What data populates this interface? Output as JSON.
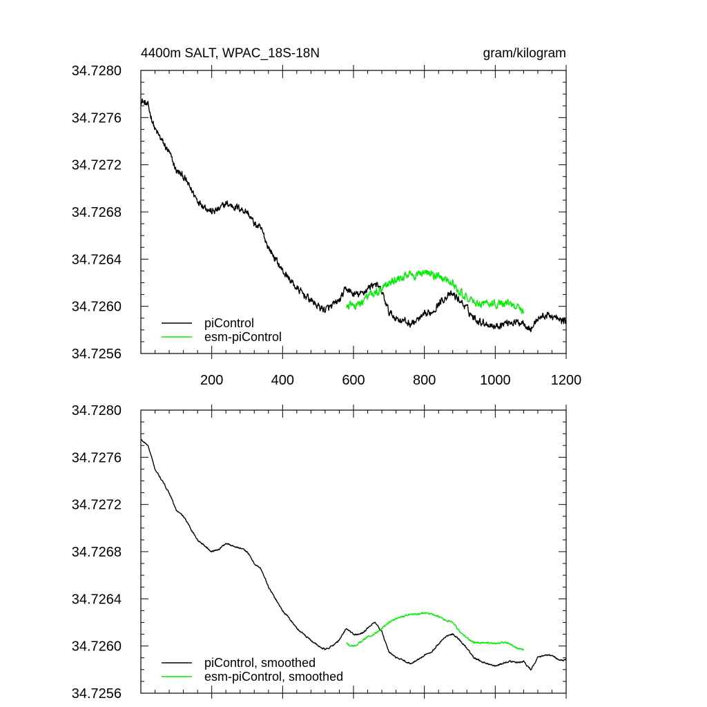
{
  "title_left": "4400m SALT, WPAC_18S-18N",
  "title_right": "gram/kilogram",
  "colors": {
    "piControl": "#000000",
    "esm": "#00ee00",
    "axis": "#000000"
  },
  "chart_data": [
    {
      "type": "line",
      "title": "4400m SALT, WPAC_18S-18N",
      "units": "gram/kilogram",
      "xlim": [
        0,
        1200
      ],
      "ylim": [
        34.7256,
        34.728
      ],
      "xticks": [
        200,
        400,
        600,
        800,
        1000,
        1200
      ],
      "xtick_labels": [
        "200",
        "400",
        "600",
        "800",
        "1000",
        "1200"
      ],
      "yticks": [
        34.7256,
        34.726,
        34.7264,
        34.7268,
        34.7272,
        34.7276,
        34.728
      ],
      "ytick_labels": [
        "34.7256",
        "34.7260",
        "34.7264",
        "34.7268",
        "34.7272",
        "34.7276",
        "34.7280"
      ],
      "legend_position": "bottom-left",
      "series": [
        {
          "name": "piControl",
          "color": "#000000",
          "noise": 5.5e-05,
          "x": [
            0,
            20,
            40,
            60,
            80,
            100,
            120,
            140,
            160,
            180,
            200,
            220,
            240,
            260,
            280,
            300,
            320,
            340,
            360,
            380,
            400,
            420,
            440,
            460,
            480,
            500,
            520,
            540,
            560,
            580,
            600,
            620,
            640,
            660,
            680,
            700,
            720,
            740,
            760,
            780,
            800,
            820,
            840,
            860,
            880,
            900,
            920,
            940,
            960,
            980,
            1000,
            1020,
            1040,
            1060,
            1080,
            1100,
            1120,
            1140,
            1160,
            1180,
            1200
          ],
          "values": [
            34.72775,
            34.7277,
            34.7275,
            34.7274,
            34.7273,
            34.72715,
            34.7271,
            34.727,
            34.7269,
            34.72685,
            34.7268,
            34.72682,
            34.72687,
            34.72685,
            34.72683,
            34.7268,
            34.7267,
            34.72665,
            34.7265,
            34.7264,
            34.7263,
            34.72623,
            34.72615,
            34.7261,
            34.72605,
            34.726,
            34.72597,
            34.726,
            34.72605,
            34.72615,
            34.7261,
            34.7261,
            34.72615,
            34.7262,
            34.72612,
            34.72595,
            34.7259,
            34.72588,
            34.72585,
            34.72588,
            34.72592,
            34.72595,
            34.72602,
            34.72608,
            34.7261,
            34.72605,
            34.72598,
            34.7259,
            34.72587,
            34.72585,
            34.72583,
            34.72585,
            34.72587,
            34.72586,
            34.72587,
            34.7258,
            34.7259,
            34.72592,
            34.72592,
            34.72588,
            34.72588
          ]
        },
        {
          "name": "esm-piControl",
          "color": "#00ee00",
          "noise": 6e-05,
          "x": [
            580,
            600,
            620,
            640,
            660,
            680,
            700,
            720,
            740,
            760,
            780,
            800,
            820,
            840,
            860,
            880,
            900,
            920,
            940,
            960,
            980,
            1000,
            1020,
            1040,
            1060,
            1080
          ],
          "values": [
            34.72602,
            34.726,
            34.72603,
            34.72608,
            34.7261,
            34.72615,
            34.7262,
            34.72623,
            34.72625,
            34.72627,
            34.72627,
            34.72628,
            34.72627,
            34.72625,
            34.72622,
            34.7262,
            34.72612,
            34.72607,
            34.72603,
            34.72603,
            34.72603,
            34.72602,
            34.72603,
            34.72602,
            34.72598,
            34.72597
          ]
        }
      ],
      "legend": [
        "piControl",
        "esm-piControl"
      ]
    },
    {
      "type": "line",
      "xlim": [
        0,
        1200
      ],
      "ylim": [
        34.7256,
        34.728
      ],
      "xticks": [
        200,
        400,
        600,
        800,
        1000,
        1200
      ],
      "xtick_labels": [],
      "yticks": [
        34.7256,
        34.726,
        34.7264,
        34.7268,
        34.7272,
        34.7276,
        34.728
      ],
      "ytick_labels": [
        "34.7256",
        "34.7260",
        "34.7264",
        "34.7268",
        "34.7272",
        "34.7276",
        "34.7280"
      ],
      "legend_position": "bottom-left",
      "series": [
        {
          "name": "piControl, smoothed",
          "color": "#000000",
          "noise": 1.2e-05,
          "x": [
            0,
            20,
            40,
            60,
            80,
            100,
            120,
            140,
            160,
            180,
            200,
            220,
            240,
            260,
            280,
            300,
            320,
            340,
            360,
            380,
            400,
            420,
            440,
            460,
            480,
            500,
            520,
            540,
            560,
            580,
            600,
            620,
            640,
            660,
            680,
            700,
            720,
            740,
            760,
            780,
            800,
            820,
            840,
            860,
            880,
            900,
            920,
            940,
            960,
            980,
            1000,
            1020,
            1040,
            1060,
            1080,
            1100,
            1120,
            1140,
            1160,
            1180,
            1200
          ],
          "values": [
            34.72775,
            34.7277,
            34.7275,
            34.7274,
            34.7273,
            34.72715,
            34.7271,
            34.727,
            34.7269,
            34.72685,
            34.7268,
            34.72682,
            34.72687,
            34.72685,
            34.72683,
            34.7268,
            34.7267,
            34.72665,
            34.7265,
            34.7264,
            34.7263,
            34.72623,
            34.72615,
            34.7261,
            34.72605,
            34.726,
            34.72597,
            34.726,
            34.72605,
            34.72615,
            34.7261,
            34.7261,
            34.72615,
            34.7262,
            34.72612,
            34.72595,
            34.7259,
            34.72588,
            34.72585,
            34.72588,
            34.72592,
            34.72595,
            34.72602,
            34.72608,
            34.7261,
            34.72605,
            34.72598,
            34.7259,
            34.72587,
            34.72585,
            34.72583,
            34.72585,
            34.72587,
            34.72586,
            34.72587,
            34.7258,
            34.7259,
            34.72592,
            34.72592,
            34.72588,
            34.72588
          ]
        },
        {
          "name": "esm-piControl, smoothed",
          "color": "#00ee00",
          "noise": 1.4e-05,
          "x": [
            580,
            600,
            620,
            640,
            660,
            680,
            700,
            720,
            740,
            760,
            780,
            800,
            820,
            840,
            860,
            880,
            900,
            920,
            940,
            960,
            980,
            1000,
            1020,
            1040,
            1060,
            1080
          ],
          "values": [
            34.72602,
            34.726,
            34.72603,
            34.72608,
            34.7261,
            34.72615,
            34.7262,
            34.72623,
            34.72625,
            34.72627,
            34.72627,
            34.72628,
            34.72627,
            34.72625,
            34.72622,
            34.7262,
            34.72612,
            34.72607,
            34.72603,
            34.72603,
            34.72603,
            34.72602,
            34.72603,
            34.72602,
            34.72598,
            34.72597
          ]
        }
      ],
      "legend": [
        "piControl, smoothed",
        "esm-piControl, smoothed"
      ]
    }
  ]
}
